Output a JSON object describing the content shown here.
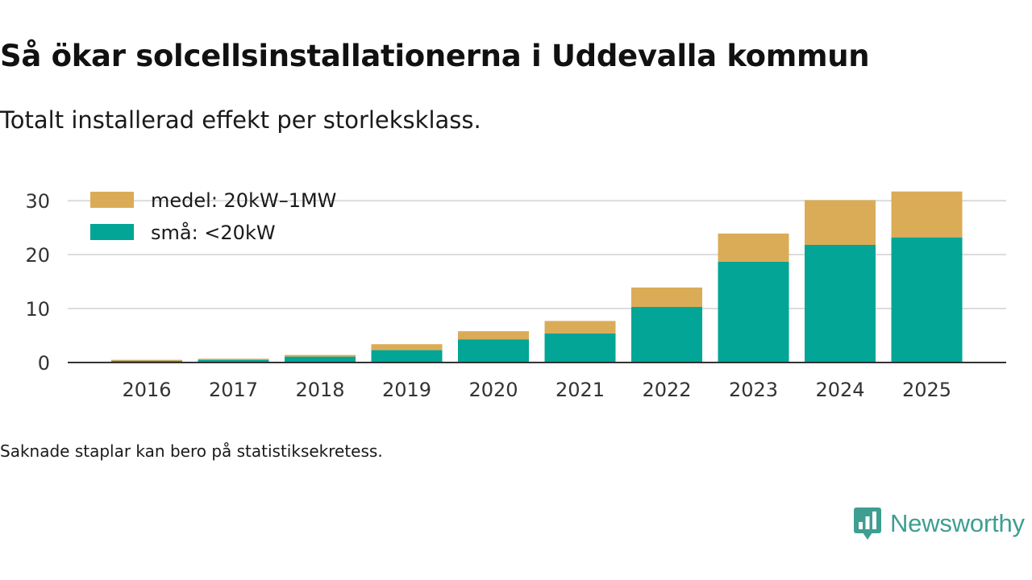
{
  "title": "Så ökar solcellsinstallationerna i Uddevalla kommun",
  "subtitle": "Totalt installerad effekt per storleksklass.",
  "footnote": "Saknade staplar kan bero på statistiksekretess.",
  "brand": {
    "name": "Newsworthy",
    "icon": "newsworthy-logo-icon"
  },
  "colors": {
    "medel": "#dbac57",
    "sma": "#02a596",
    "grid": "#dcdcdc",
    "axis": "#333333",
    "brand": "#3e9e91"
  },
  "chart_data": {
    "type": "bar",
    "stacked": true,
    "title": "Så ökar solcellsinstallationerna i Uddevalla kommun",
    "subtitle": "Totalt installerad effekt per storleksklass.",
    "xlabel": "",
    "ylabel": "",
    "ylim": [
      0,
      33
    ],
    "yticks": [
      0,
      10,
      20,
      30
    ],
    "grid": true,
    "legend_position": "top-left",
    "categories": [
      "2016",
      "2017",
      "2018",
      "2019",
      "2020",
      "2021",
      "2022",
      "2023",
      "2024",
      "2025"
    ],
    "series": [
      {
        "name": "små: <20kW",
        "color": "#02a596",
        "values": [
          0.3,
          0.5,
          1.1,
          2.3,
          4.3,
          5.4,
          10.3,
          18.7,
          21.8,
          23.2
        ]
      },
      {
        "name": "medel: 20kW–1MW",
        "color": "#dbac57",
        "values": [
          0.2,
          0.2,
          0.3,
          1.1,
          1.5,
          2.3,
          3.6,
          5.2,
          8.3,
          8.5
        ]
      }
    ],
    "legend_order": [
      "medel: 20kW–1MW",
      "små: <20kW"
    ]
  }
}
